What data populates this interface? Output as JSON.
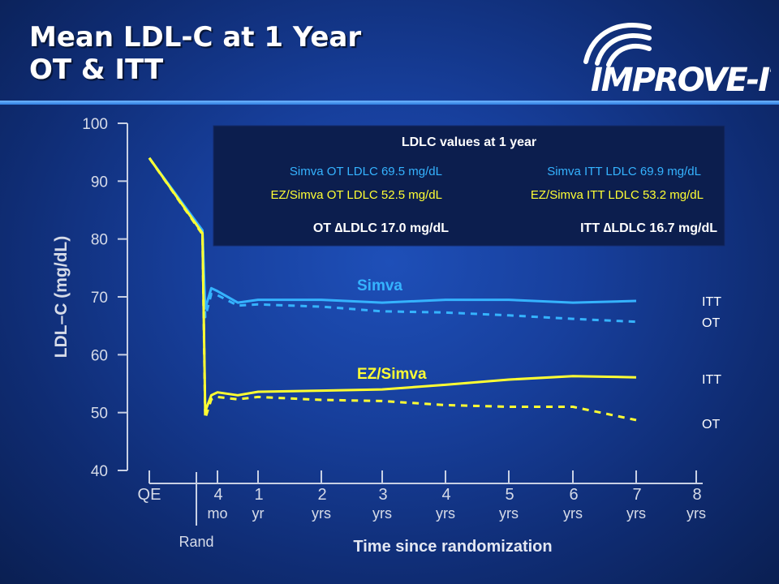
{
  "title": {
    "line1": "Mean LDL-C at 1 Year",
    "line2": "OT & ITT"
  },
  "logo": {
    "brand_text": "IMPROVE-IT"
  },
  "colors": {
    "simva": "#35b3ff",
    "ez_simva": "#ffff33",
    "axis": "#c8d0e4",
    "box": "#0c1e4e",
    "text": "#ffffff"
  },
  "chart_data": {
    "type": "line",
    "title": "",
    "ylabel": "LDL–C (mg/dL)",
    "xlabel": "Time since randomization",
    "ylim": [
      40,
      100
    ],
    "yticks": [
      "40",
      "50",
      "60",
      "70",
      "80",
      "90",
      "100"
    ],
    "x_ticks": [
      {
        "top": "QE",
        "bottom": ""
      },
      {
        "top": "4",
        "bottom": "mo"
      },
      {
        "top": "1",
        "bottom": "yr"
      },
      {
        "top": "2",
        "bottom": "yrs"
      },
      {
        "top": "3",
        "bottom": "yrs"
      },
      {
        "top": "4",
        "bottom": "yrs"
      },
      {
        "top": "5",
        "bottom": "yrs"
      },
      {
        "top": "6",
        "bottom": "yrs"
      },
      {
        "top": "7",
        "bottom": "yrs"
      },
      {
        "top": "8",
        "bottom": "yrs"
      }
    ],
    "rand_label": "Rand",
    "series": [
      {
        "name": "Simva",
        "label": "ITT",
        "values": [
          [
            0,
            94
          ],
          [
            0.78,
            81.5
          ],
          [
            0.82,
            68
          ],
          [
            0.91,
            71.5
          ],
          [
            1.0,
            71.0
          ],
          [
            1.5,
            69.0
          ],
          [
            2,
            69.5
          ],
          [
            3,
            69.5
          ],
          [
            4,
            69.0
          ],
          [
            5,
            69.5
          ],
          [
            6,
            69.5
          ],
          [
            7,
            69.0
          ],
          [
            8,
            69.3
          ]
        ]
      },
      {
        "name": "Simva",
        "label": "OT",
        "values": [
          [
            0,
            94
          ],
          [
            0.78,
            81.2
          ],
          [
            0.82,
            66.5
          ],
          [
            0.91,
            70.5
          ],
          [
            1.0,
            70.3
          ],
          [
            1.5,
            68.5
          ],
          [
            2,
            68.7
          ],
          [
            3,
            68.3
          ],
          [
            4,
            67.5
          ],
          [
            5,
            67.3
          ],
          [
            6,
            66.8
          ],
          [
            7,
            66.2
          ],
          [
            8,
            65.7
          ]
        ]
      },
      {
        "name": "EZ/Simva",
        "label": "ITT",
        "values": [
          [
            0,
            94
          ],
          [
            0.78,
            81.0
          ],
          [
            0.82,
            50.2
          ],
          [
            0.91,
            53.0
          ],
          [
            1.0,
            53.5
          ],
          [
            1.5,
            53.0
          ],
          [
            2,
            53.6
          ],
          [
            3,
            53.8
          ],
          [
            4,
            54.0
          ],
          [
            5,
            54.8
          ],
          [
            6,
            55.7
          ],
          [
            7,
            56.3
          ],
          [
            8,
            56.1
          ]
        ]
      },
      {
        "name": "EZ/Simva",
        "label": "OT",
        "values": [
          [
            0,
            94
          ],
          [
            0.78,
            80.8
          ],
          [
            0.82,
            49.0
          ],
          [
            0.91,
            52.3
          ],
          [
            1.0,
            52.7
          ],
          [
            1.5,
            52.3
          ],
          [
            2,
            52.7
          ],
          [
            3,
            52.2
          ],
          [
            4,
            52.0
          ],
          [
            5,
            51.3
          ],
          [
            6,
            51.0
          ],
          [
            7,
            51.0
          ],
          [
            8,
            48.7
          ]
        ]
      }
    ],
    "series_labels": {
      "simva": "Simva",
      "ez_simva": "EZ/Simva"
    },
    "line_labels": {
      "itt": "ITT",
      "ot": "OT"
    },
    "summary_box": {
      "heading": "LDLC values at 1 year",
      "simva_ot": "Simva OT LDLC 69.5 mg/dL",
      "simva_itt": "Simva ITT LDLC 69.9 mg/dL",
      "ez_ot": "EZ/Simva OT LDLC 52.5 mg/dL",
      "ez_itt": "EZ/Simva ITT LDLC 53.2 mg/dL",
      "ot_delta": "OT ∆LDLC 17.0 mg/dL",
      "itt_delta": "ITT ∆LDLC 16.7 mg/dL"
    }
  }
}
